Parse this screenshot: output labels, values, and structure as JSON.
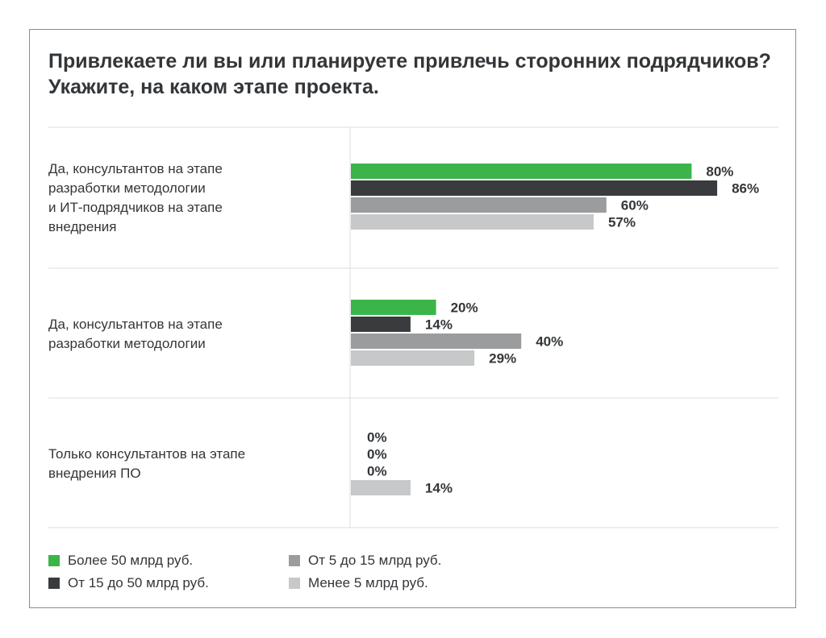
{
  "colors": {
    "series1": "#3bb54a",
    "series2": "#393b3e",
    "series3": "#9b9c9e",
    "series4": "#c7c8ca",
    "gridline": "#dcdcdc",
    "text": "#333639"
  },
  "chart_data": {
    "type": "bar",
    "orientation": "horizontal",
    "title": "Привлекаете ли вы или планируете привлечь сторонних подрядчиков? Укажите, на каком этапе проекта.",
    "categories": [
      [
        "Да, консультантов на этапе",
        "разработки методологии",
        "и ИТ-подрядчиков на этапе",
        "внедрения"
      ],
      [
        "Да, консультантов на этапе",
        "разработки методологии"
      ],
      [
        "Только консультантов на этапе",
        "внедрения ПО"
      ]
    ],
    "series": [
      {
        "name": "Более 50 млрд руб.",
        "values": [
          80,
          20,
          0
        ]
      },
      {
        "name": "От 15 до 50 млрд руб.",
        "values": [
          86,
          14,
          0
        ]
      },
      {
        "name": "От 5 до 15 млрд руб.",
        "values": [
          60,
          40,
          0
        ]
      },
      {
        "name": "Менее 5 млрд руб.",
        "values": [
          57,
          29,
          14
        ]
      }
    ],
    "value_suffix": "%",
    "xlim": [
      0,
      100
    ],
    "legend_position": "bottom",
    "grid": false
  }
}
